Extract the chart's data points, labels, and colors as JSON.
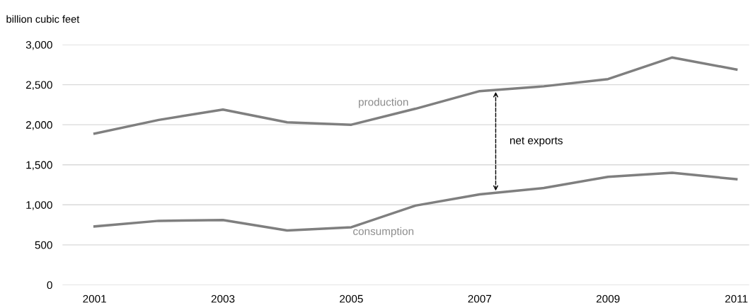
{
  "chart_data": {
    "type": "line",
    "ylabel": "billion cubic feet",
    "x": [
      2001,
      2002,
      2003,
      2004,
      2005,
      2006,
      2007,
      2008,
      2009,
      2010,
      2011
    ],
    "series": [
      {
        "name": "production",
        "color": "#7f7f7f",
        "values": [
          1890,
          2060,
          2190,
          2030,
          2000,
          2200,
          2420,
          2480,
          2570,
          2840,
          2690
        ]
      },
      {
        "name": "consumption",
        "color": "#7f7f7f",
        "values": [
          730,
          800,
          810,
          680,
          720,
          990,
          1130,
          1210,
          1350,
          1400,
          1320
        ]
      }
    ],
    "annotations": [
      "net exports"
    ],
    "xlim": [
      2000.5,
      2011.2
    ],
    "xticks": [
      2001,
      2003,
      2005,
      2007,
      2009,
      2011
    ],
    "ylim": [
      0,
      3000
    ],
    "yticks": [
      0,
      500,
      {
        "value": 1000,
        "label": "1,000"
      },
      {
        "value": 1500,
        "label": "1,500"
      },
      {
        "value": 2000,
        "label": "2,000"
      },
      {
        "value": 2500,
        "label": "2,500"
      },
      {
        "value": 3000,
        "label": "3,000"
      }
    ],
    "grid": "y",
    "legend": false,
    "marker": "none",
    "line_style": "solid"
  }
}
